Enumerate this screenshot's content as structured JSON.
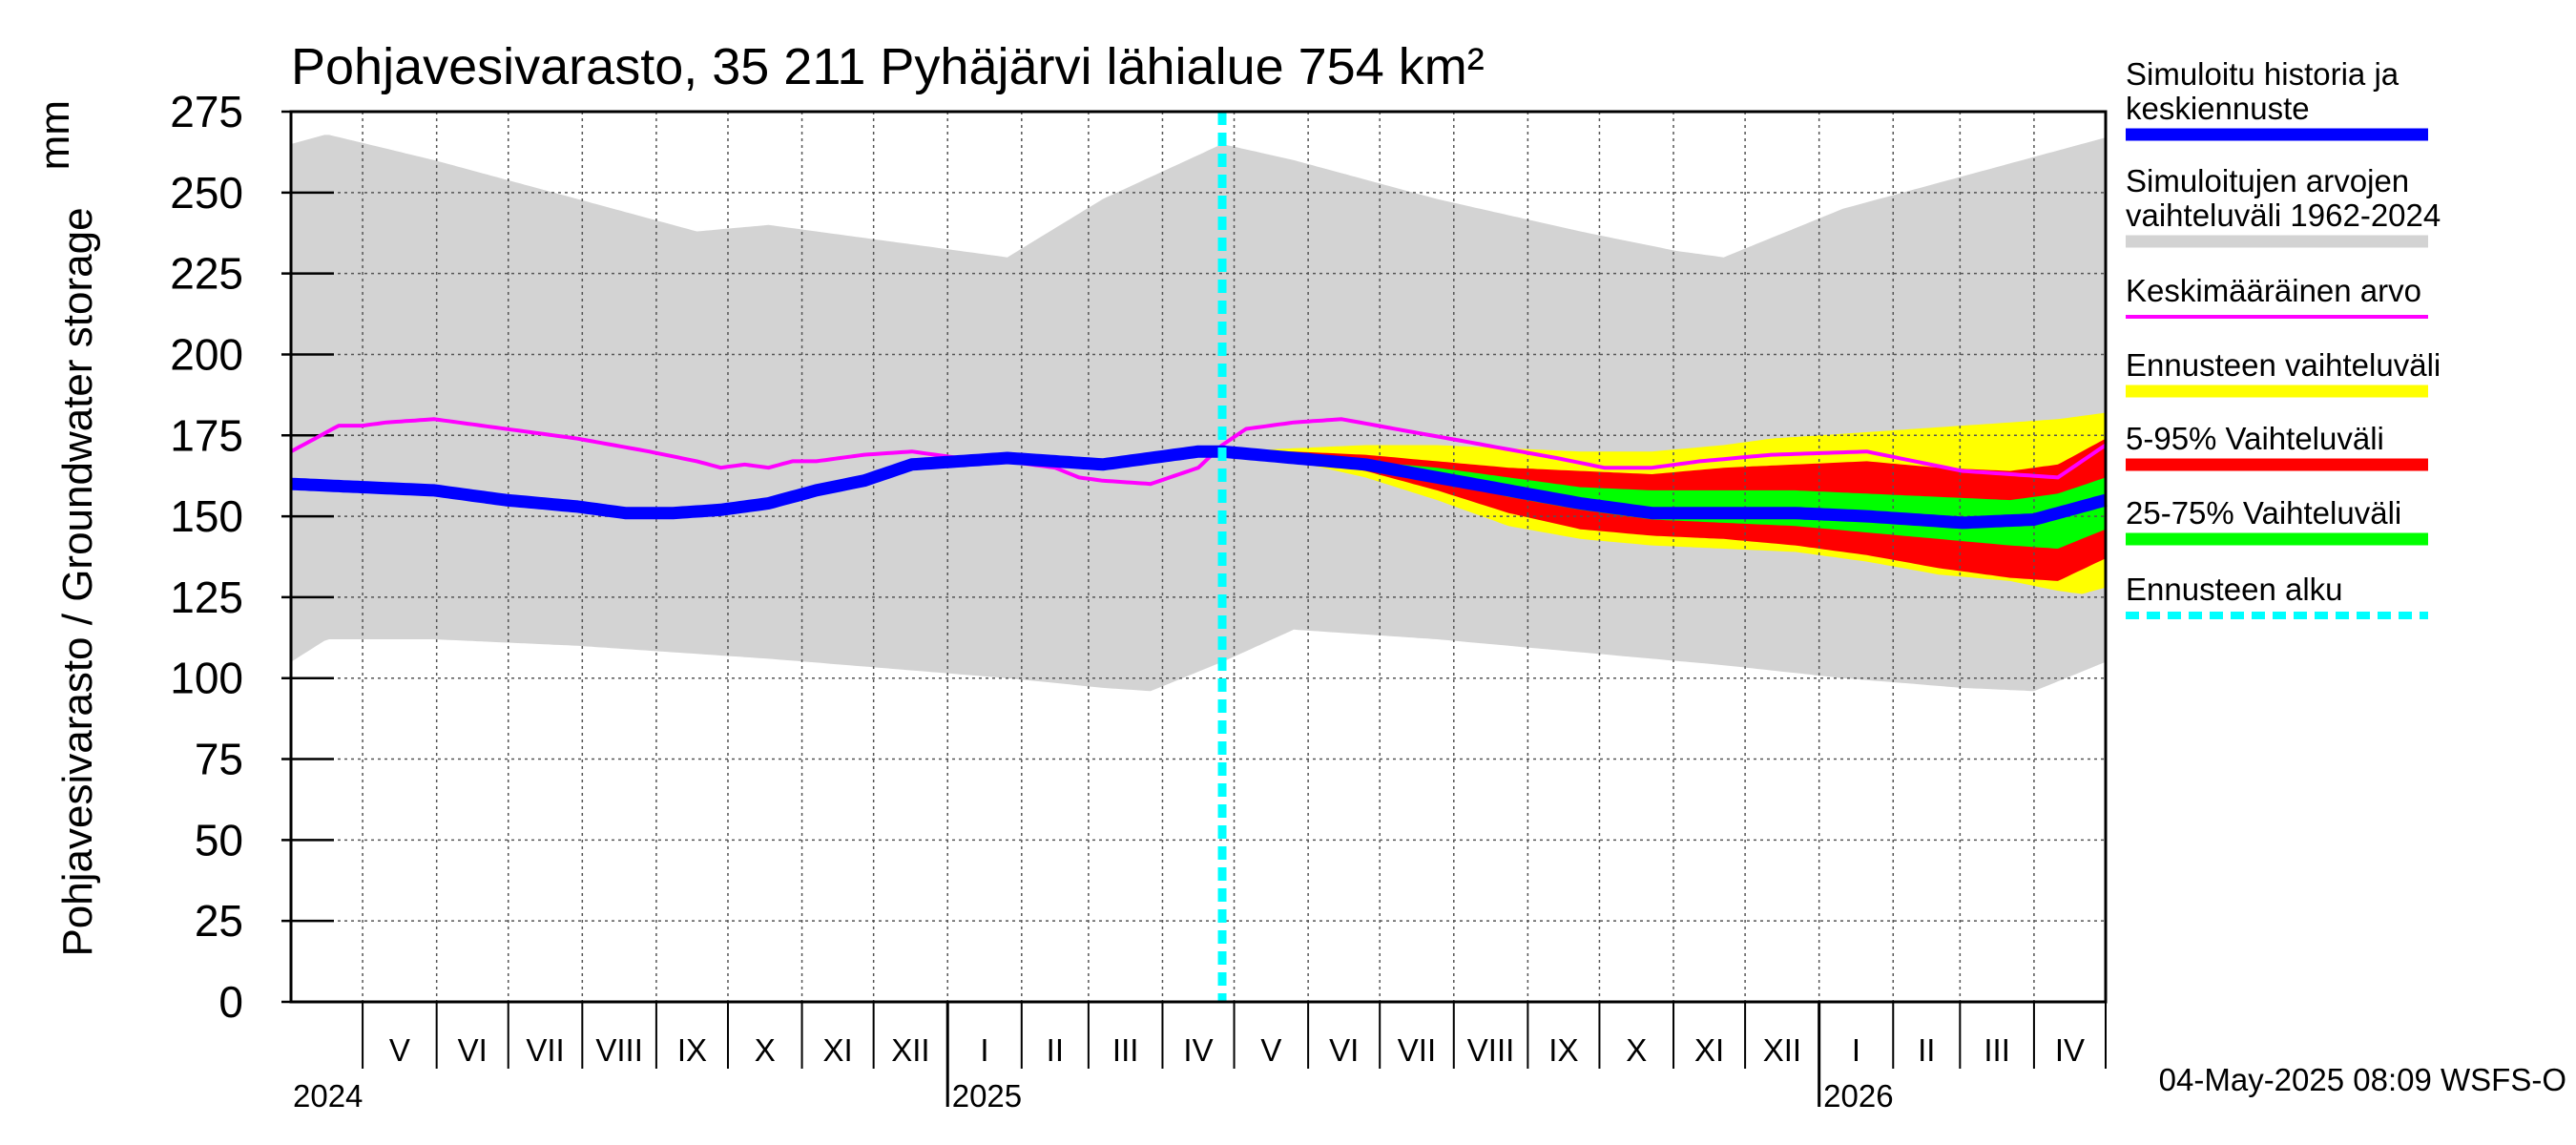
{
  "chart_data": {
    "type": "area",
    "title": "Pohjavesivarasto, 35 211 Pyhäjärvi lähialue 754 km²",
    "unit": "mm",
    "ylabel": "Pohjavesivarasto / Groundwater storage",
    "ylim": [
      0,
      275
    ],
    "yticks": [
      "0",
      "25",
      "50",
      "75",
      "100",
      "125",
      "150",
      "175",
      "200",
      "225",
      "250",
      "275"
    ],
    "grid": true,
    "x_start": "2024-04-01",
    "x_end": "2026-04-30",
    "months": [
      "V",
      "VI",
      "VII",
      "VIII",
      "IX",
      "X",
      "XI",
      "XII",
      "I",
      "II",
      "III",
      "IV",
      "V",
      "VI",
      "VII",
      "VIII",
      "IX",
      "X",
      "XI",
      "XII",
      "I",
      "II",
      "III",
      "IV"
    ],
    "years": [
      "2024",
      "2025",
      "2026"
    ],
    "forecast_start_day": 390,
    "footer": "04-May-2025 08:09 WSFS-O",
    "legend": [
      {
        "label_lines": [
          "Simuloitu historia ja",
          "keskiennuste"
        ],
        "color": "#0000ff",
        "style": "thick"
      },
      {
        "label_lines": [
          "Simuloitujen arvojen",
          "vaihteluväli 1962-2024"
        ],
        "color": "#d3d3d3",
        "style": "band"
      },
      {
        "label_lines": [
          "Keskimääräinen arvo"
        ],
        "color": "#ff00ff",
        "style": "line"
      },
      {
        "label_lines": [
          "Ennusteen vaihteluväli"
        ],
        "color": "#ffff00",
        "style": "band"
      },
      {
        "label_lines": [
          "5-95% Vaihteluväli"
        ],
        "color": "#ff0000",
        "style": "band"
      },
      {
        "label_lines": [
          "25-75% Vaihteluväli"
        ],
        "color": "#00ff00",
        "style": "band"
      },
      {
        "label_lines": [
          "Ennusteen alku"
        ],
        "color": "#00ffff",
        "style": "dashed"
      }
    ],
    "series": [
      {
        "name": "Simuloitujen arvojen vaihteluväli 1962-2024 (max)",
        "x": [
          0,
          15,
          60,
          120,
          170,
          200,
          280,
          300,
          340,
          390,
          420,
          480,
          540,
          580,
          600,
          650,
          700,
          760
        ],
        "values": [
          265,
          268,
          260,
          248,
          238,
          240,
          232,
          230,
          248,
          265,
          260,
          248,
          238,
          232,
          230,
          245,
          255,
          267
        ]
      },
      {
        "name": "Simuloitujen arvojen vaihteluväli 1962-2024 (min)",
        "x": [
          0,
          15,
          60,
          120,
          200,
          300,
          340,
          360,
          390,
          420,
          480,
          540,
          600,
          650,
          700,
          730,
          760
        ],
        "values": [
          105,
          112,
          112,
          110,
          106,
          100,
          97,
          96,
          105,
          115,
          112,
          108,
          104,
          100,
          97,
          96,
          105
        ]
      },
      {
        "name": "Keskimääräinen arvo",
        "x": [
          0,
          20,
          30,
          40,
          60,
          80,
          100,
          120,
          150,
          170,
          180,
          190,
          200,
          210,
          220,
          240,
          260,
          270,
          280,
          300,
          320,
          330,
          340,
          360,
          380,
          390,
          400,
          420,
          440,
          470,
          500,
          530,
          550,
          570,
          590,
          620,
          660,
          700,
          740,
          760
        ],
        "values": [
          170,
          178,
          178,
          179,
          180,
          178,
          176,
          174,
          170,
          167,
          165,
          166,
          165,
          167,
          167,
          169,
          170,
          169,
          168,
          167,
          165,
          162,
          161,
          160,
          165,
          172,
          177,
          179,
          180,
          176,
          172,
          168,
          165,
          165,
          167,
          169,
          170,
          164,
          162,
          172
        ]
      },
      {
        "name": "Simuloitu historia ja keskiennuste",
        "x": [
          0,
          30,
          60,
          90,
          120,
          140,
          150,
          160,
          180,
          200,
          220,
          240,
          260,
          280,
          300,
          320,
          340,
          360,
          380,
          390,
          420,
          450,
          480,
          510,
          540,
          570,
          600,
          630,
          660,
          700,
          730,
          760
        ],
        "values": [
          160,
          159,
          158,
          155,
          153,
          151,
          151,
          151,
          152,
          154,
          158,
          161,
          166,
          167,
          168,
          167,
          166,
          168,
          170,
          170,
          168,
          166,
          162,
          158,
          154,
          151,
          151,
          151,
          150,
          148,
          149,
          155
        ]
      },
      {
        "name": "Ennusteen vaihteluväli (max)",
        "x": [
          390,
          420,
          450,
          480,
          510,
          540,
          570,
          600,
          620,
          640,
          660,
          680,
          700,
          720,
          740,
          760
        ],
        "values": [
          170,
          171,
          172,
          172,
          171,
          170,
          170,
          172,
          174,
          175,
          176,
          177,
          178,
          179,
          180,
          182
        ]
      },
      {
        "name": "Ennusteen vaihteluväli (min)",
        "x": [
          390,
          420,
          450,
          480,
          510,
          540,
          570,
          600,
          630,
          660,
          690,
          720,
          740,
          750,
          760
        ],
        "values": [
          170,
          167,
          162,
          155,
          147,
          143,
          141,
          140,
          139,
          136,
          132,
          130,
          127,
          126,
          128
        ]
      },
      {
        "name": "5-95% Vaihteluväli (max)",
        "x": [
          390,
          420,
          450,
          480,
          510,
          540,
          570,
          600,
          630,
          660,
          690,
          720,
          740,
          760
        ],
        "values": [
          170,
          170,
          169,
          167,
          165,
          164,
          163,
          165,
          166,
          167,
          165,
          164,
          166,
          174
        ]
      },
      {
        "name": "5-95% Vaihteluväli (min)",
        "x": [
          390,
          420,
          450,
          480,
          510,
          540,
          570,
          600,
          630,
          660,
          690,
          720,
          740,
          760
        ],
        "values": [
          170,
          168,
          164,
          158,
          151,
          146,
          144,
          143,
          141,
          138,
          134,
          131,
          130,
          137
        ]
      },
      {
        "name": "25-75% Vaihteluväli (max)",
        "x": [
          390,
          420,
          450,
          480,
          510,
          540,
          570,
          600,
          630,
          660,
          690,
          720,
          740,
          760
        ],
        "values": [
          170,
          169,
          167,
          165,
          162,
          159,
          158,
          158,
          158,
          157,
          156,
          155,
          157,
          162
        ]
      },
      {
        "name": "25-75% Vaihteluväli (min)",
        "x": [
          390,
          420,
          450,
          480,
          510,
          540,
          570,
          600,
          630,
          660,
          690,
          720,
          740,
          760
        ],
        "values": [
          170,
          168,
          165,
          161,
          156,
          152,
          149,
          148,
          147,
          145,
          143,
          141,
          140,
          146
        ]
      }
    ]
  }
}
